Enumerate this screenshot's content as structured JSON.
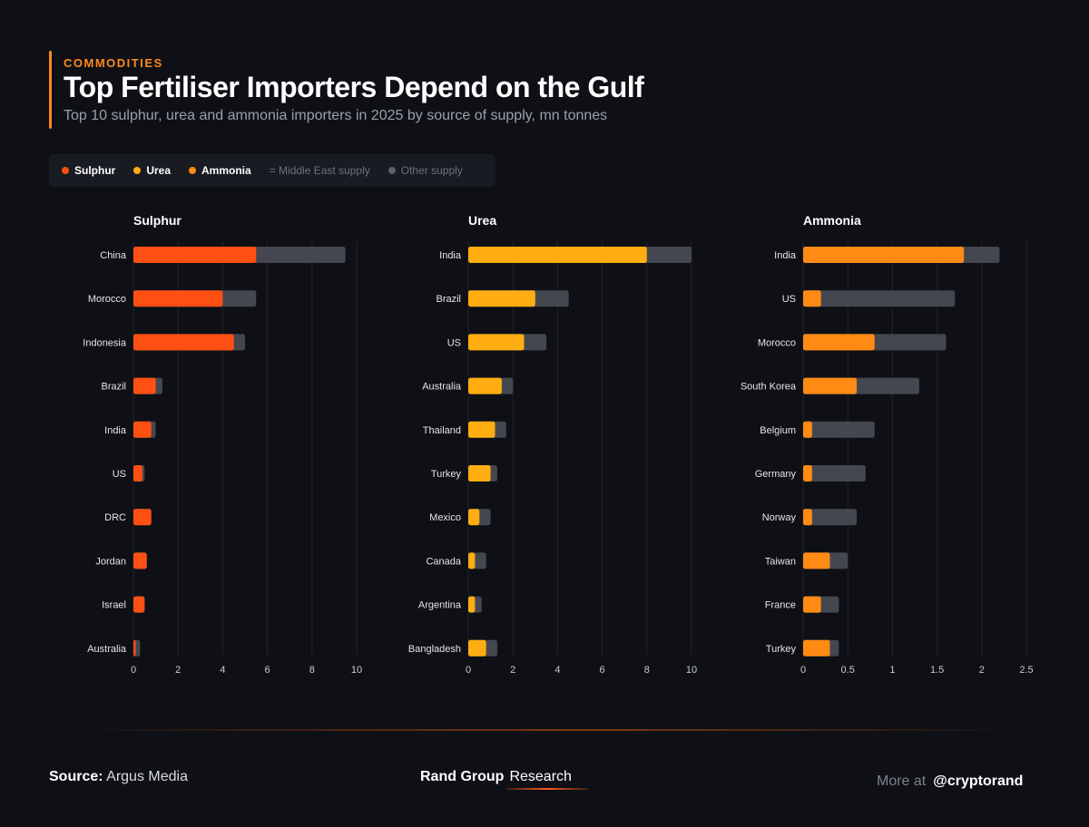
{
  "header": {
    "kicker": "COMMODITIES",
    "title": "Top Fertiliser Importers Depend on the Gulf",
    "subtitle": "Top 10 sulphur, urea and ammonia importers in 2025 by source of supply, mn tonnes"
  },
  "legend": {
    "sulphur": "Sulphur",
    "urea": "Urea",
    "ammonia": "Ammonia",
    "middle_east": "= Middle East supply",
    "other": "Other supply"
  },
  "colors": {
    "sulphur": "#ff4f12",
    "urea": "#ffad10",
    "ammonia": "#ff8a14",
    "other": "#44474f",
    "grid": "#22252d",
    "background": "#0e1015"
  },
  "chart_data": [
    {
      "type": "bar",
      "orientation": "horizontal",
      "stacked": true,
      "title": "Sulphur",
      "color_key": "sulphur",
      "categories": [
        "China",
        "Morocco",
        "Indonesia",
        "Brazil",
        "India",
        "US",
        "DRC",
        "Jordan",
        "Israel",
        "Australia"
      ],
      "series": [
        {
          "name": "Middle East supply",
          "values": [
            5.5,
            4.0,
            4.5,
            1.0,
            0.8,
            0.4,
            0.8,
            0.6,
            0.5,
            0.1
          ]
        },
        {
          "name": "Other supply",
          "values": [
            4.0,
            1.5,
            0.5,
            0.3,
            0.2,
            0.1,
            0.0,
            0.0,
            0.0,
            0.2
          ]
        }
      ],
      "xlim": [
        0,
        10
      ],
      "ticks": [
        "0",
        "2",
        "4",
        "6",
        "8",
        "10"
      ]
    },
    {
      "type": "bar",
      "orientation": "horizontal",
      "stacked": true,
      "title": "Urea",
      "color_key": "urea",
      "categories": [
        "India",
        "Brazil",
        "US",
        "Australia",
        "Thailand",
        "Turkey",
        "Mexico",
        "Canada",
        "Argentina",
        "Bangladesh"
      ],
      "series": [
        {
          "name": "Middle East supply",
          "values": [
            8.0,
            3.0,
            2.5,
            1.5,
            1.2,
            1.0,
            0.5,
            0.3,
            0.3,
            0.8
          ]
        },
        {
          "name": "Other supply",
          "values": [
            2.0,
            1.5,
            1.0,
            0.5,
            0.5,
            0.3,
            0.5,
            0.5,
            0.3,
            0.5
          ]
        }
      ],
      "xlim": [
        0,
        10
      ],
      "ticks": [
        "0",
        "2",
        "4",
        "6",
        "8",
        "10"
      ]
    },
    {
      "type": "bar",
      "orientation": "horizontal",
      "stacked": true,
      "title": "Ammonia",
      "color_key": "ammonia",
      "categories": [
        "India",
        "US",
        "Morocco",
        "South Korea",
        "Belgium",
        "Germany",
        "Norway",
        "Taiwan",
        "France",
        "Turkey"
      ],
      "series": [
        {
          "name": "Middle East supply",
          "values": [
            1.8,
            0.2,
            0.8,
            0.6,
            0.1,
            0.1,
            0.1,
            0.3,
            0.2,
            0.3
          ]
        },
        {
          "name": "Other supply",
          "values": [
            0.4,
            1.5,
            0.8,
            0.7,
            0.7,
            0.6,
            0.5,
            0.2,
            0.2,
            0.1
          ]
        }
      ],
      "xlim": [
        0,
        2.5
      ],
      "ticks": [
        "0",
        "0.5",
        "1",
        "1.5",
        "2",
        "2.5"
      ]
    }
  ],
  "footer": {
    "source_label": "Source:",
    "source_value": "Argus Media",
    "brand_bold": "Rand Group",
    "brand_light": "Research",
    "more_label": "More at",
    "handle": "@cryptorand"
  }
}
